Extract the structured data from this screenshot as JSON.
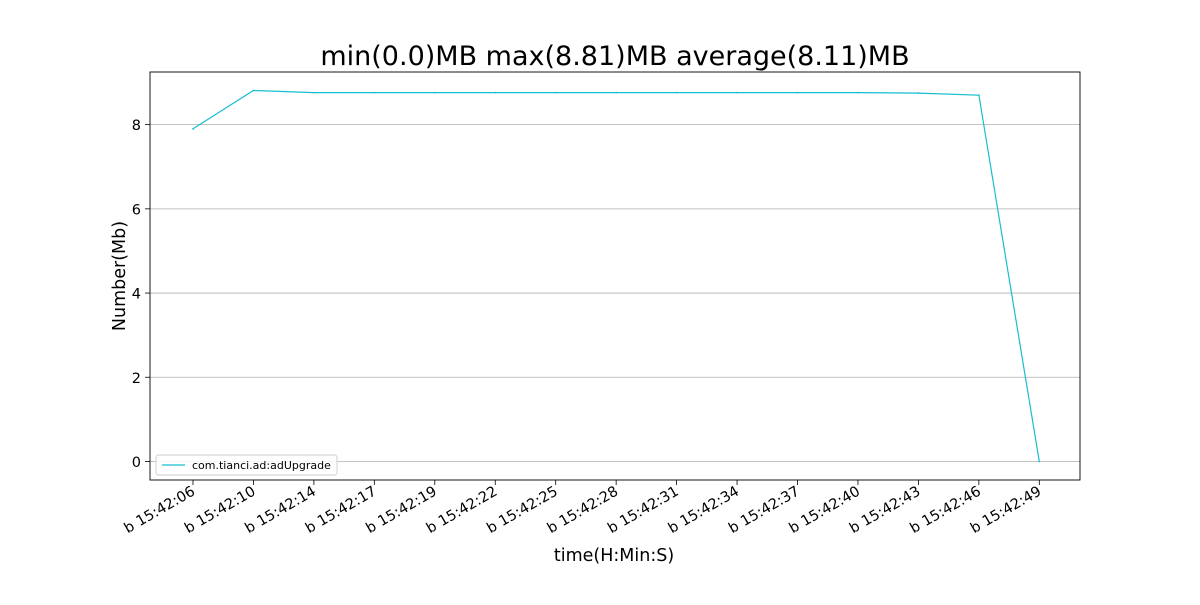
{
  "chart_data": {
    "type": "line",
    "title": "min(0.0)MB max(8.81)MB average(8.11)MB",
    "xlabel": "time(H:Min:S)",
    "ylabel": "Number(Mb)",
    "categories": [
      "b 15:42:06",
      "b 15:42:10",
      "b 15:42:14",
      "b 15:42:17",
      "b 15:42:19",
      "b 15:42:22",
      "b 15:42:25",
      "b 15:42:28",
      "b 15:42:31",
      "b 15:42:34",
      "b 15:42:37",
      "b 15:42:40",
      "b 15:42:43",
      "b 15:42:46",
      "b 15:42:49"
    ],
    "series": [
      {
        "name": "com.tianci.ad:adUpgrade",
        "color": "#17becf",
        "values": [
          7.9,
          8.81,
          8.76,
          8.76,
          8.76,
          8.76,
          8.76,
          8.76,
          8.76,
          8.76,
          8.76,
          8.76,
          8.75,
          8.7,
          0.0
        ]
      }
    ],
    "yticks": [
      0,
      2,
      4,
      6,
      8
    ],
    "ylim": [
      -0.44,
      9.25
    ],
    "grid": "horizontal",
    "legend_position": "lower-left"
  }
}
